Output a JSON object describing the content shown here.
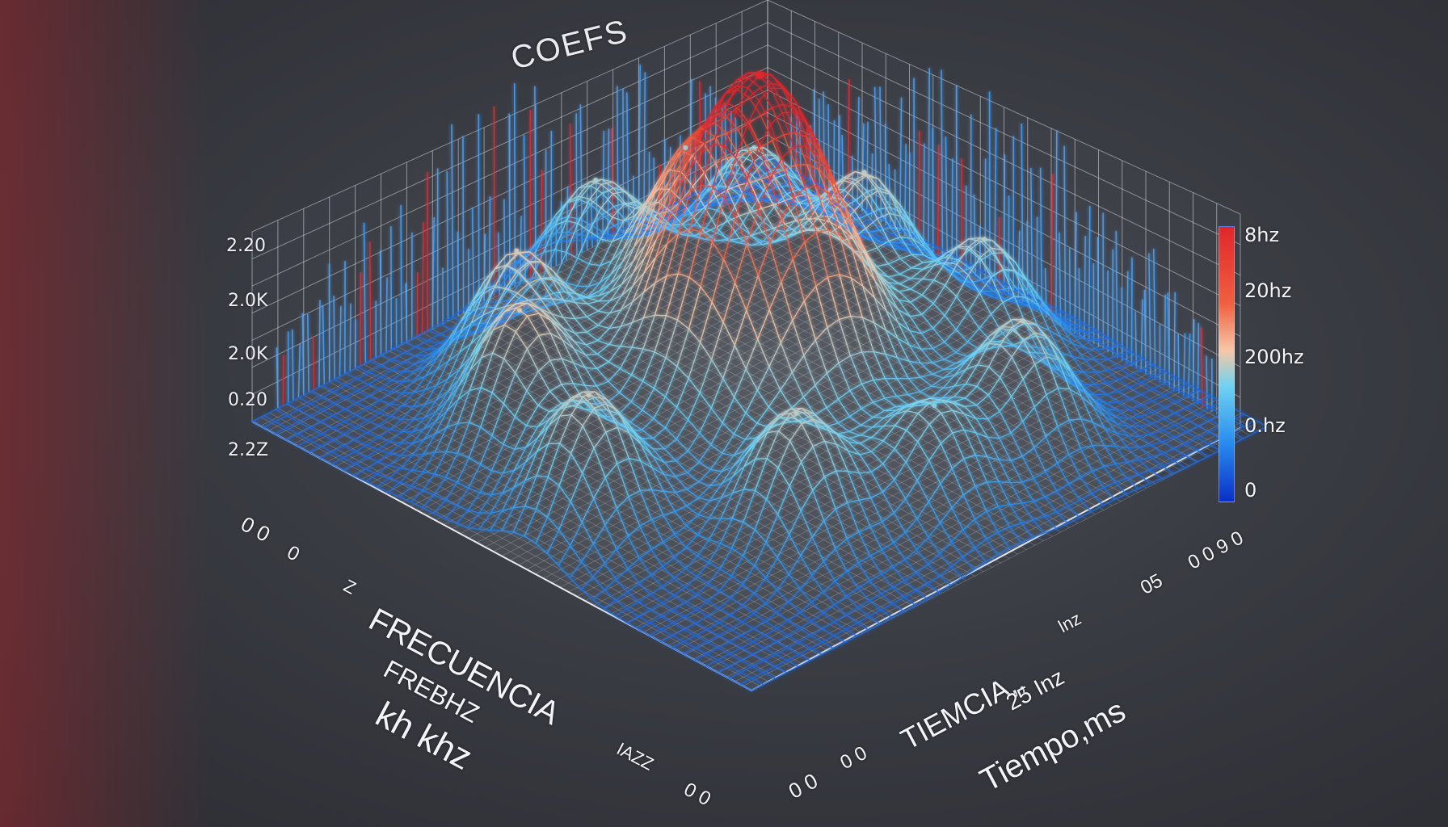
{
  "chart_data": {
    "type": "surface",
    "title": "COEFS",
    "subtitle": "",
    "z_ticks": [
      "2.20",
      "2.0K",
      "2.0K",
      "0.20",
      "2.2Z"
    ],
    "colorbar_ticks": [
      "8hz",
      "20hz",
      "200hz",
      "0.hz",
      "0"
    ],
    "colorscale": [
      "#0a2fc8",
      "#2a8ef0",
      "#6fd2f2",
      "#f6c8a8",
      "#f06040",
      "#e0262c"
    ],
    "x_axis": {
      "labels": [
        "FRECUENCIA",
        "FREBHZ",
        "kh khz"
      ],
      "tick_labels": [
        "0 0",
        "0",
        "Z",
        "IAZZ",
        "0 0"
      ]
    },
    "y_axis": {
      "labels": [
        "TIEMCIA,,",
        "25 Inz",
        "Tiempo,ms"
      ],
      "tick_labels": [
        "0 0",
        "0 0",
        "lnz",
        "05",
        "0 0 9 0"
      ]
    },
    "peaks": [
      {
        "x": 0.5,
        "y": 0.5,
        "z": 1.0
      },
      {
        "x": 0.22,
        "y": 0.3,
        "z": 0.4
      },
      {
        "x": 0.35,
        "y": 0.18,
        "z": 0.42
      },
      {
        "x": 0.55,
        "y": 0.12,
        "z": 0.4
      },
      {
        "x": 0.78,
        "y": 0.3,
        "z": 0.38
      },
      {
        "x": 0.3,
        "y": 0.55,
        "z": 0.36
      },
      {
        "x": 0.12,
        "y": 0.55,
        "z": 0.35
      },
      {
        "x": 0.2,
        "y": 0.78,
        "z": 0.34
      },
      {
        "x": 0.4,
        "y": 0.8,
        "z": 0.38
      },
      {
        "x": 0.62,
        "y": 0.82,
        "z": 0.36
      },
      {
        "x": 0.82,
        "y": 0.7,
        "z": 0.38
      },
      {
        "x": 0.85,
        "y": 0.5,
        "z": 0.3
      }
    ]
  }
}
